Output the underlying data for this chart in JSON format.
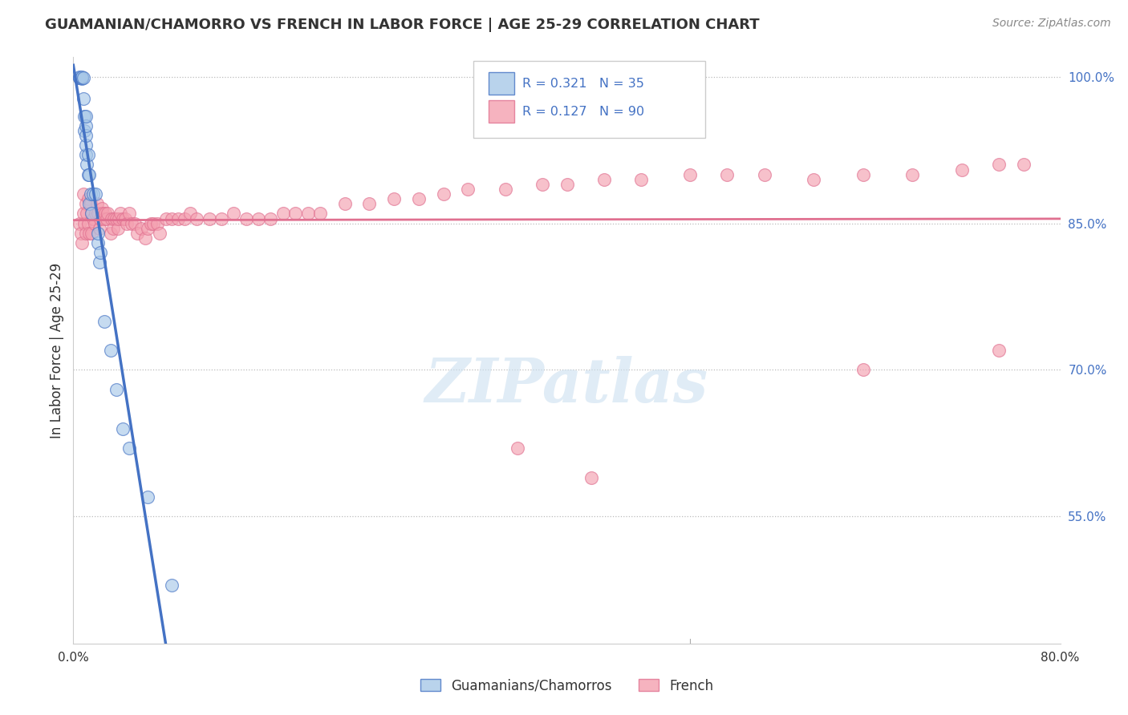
{
  "title": "GUAMANIAN/CHAMORRO VS FRENCH IN LABOR FORCE | AGE 25-29 CORRELATION CHART",
  "source": "Source: ZipAtlas.com",
  "ylabel": "In Labor Force | Age 25-29",
  "right_yticks": [
    1.0,
    0.85,
    0.7,
    0.55
  ],
  "right_yticklabels": [
    "100.0%",
    "85.0%",
    "70.0%",
    "55.0%"
  ],
  "xlim": [
    0.0,
    0.8
  ],
  "ylim": [
    0.42,
    1.02
  ],
  "R_blue": 0.321,
  "N_blue": 35,
  "R_pink": 0.127,
  "N_pink": 90,
  "legend_label_blue": "Guamanians/Chamorros",
  "legend_label_pink": "French",
  "watermark": "ZIPatlas",
  "blue_color": "#a8c8e8",
  "pink_color": "#f4a0b0",
  "trend_blue": "#4472c4",
  "trend_pink": "#e07090",
  "blue_scatter_x": [
    0.005,
    0.005,
    0.005,
    0.007,
    0.007,
    0.007,
    0.008,
    0.008,
    0.009,
    0.009,
    0.01,
    0.01,
    0.01,
    0.01,
    0.01,
    0.011,
    0.012,
    0.012,
    0.013,
    0.013,
    0.014,
    0.015,
    0.016,
    0.018,
    0.02,
    0.02,
    0.021,
    0.022,
    0.025,
    0.03,
    0.035,
    0.04,
    0.045,
    0.06,
    0.08
  ],
  "blue_scatter_y": [
    0.999,
    0.999,
    1.0,
    0.998,
    0.999,
    1.0,
    0.978,
    0.999,
    0.945,
    0.96,
    0.92,
    0.93,
    0.94,
    0.95,
    0.96,
    0.91,
    0.9,
    0.92,
    0.87,
    0.9,
    0.88,
    0.86,
    0.88,
    0.88,
    0.83,
    0.84,
    0.81,
    0.82,
    0.75,
    0.72,
    0.68,
    0.64,
    0.62,
    0.57,
    0.48
  ],
  "pink_scatter_x": [
    0.005,
    0.006,
    0.007,
    0.008,
    0.008,
    0.009,
    0.01,
    0.01,
    0.011,
    0.012,
    0.012,
    0.013,
    0.014,
    0.015,
    0.015,
    0.016,
    0.017,
    0.018,
    0.019,
    0.02,
    0.021,
    0.022,
    0.023,
    0.024,
    0.025,
    0.026,
    0.027,
    0.028,
    0.03,
    0.031,
    0.032,
    0.033,
    0.035,
    0.036,
    0.037,
    0.038,
    0.04,
    0.042,
    0.043,
    0.045,
    0.047,
    0.05,
    0.052,
    0.055,
    0.058,
    0.06,
    0.063,
    0.065,
    0.068,
    0.07,
    0.075,
    0.08,
    0.085,
    0.09,
    0.095,
    0.1,
    0.11,
    0.12,
    0.13,
    0.14,
    0.15,
    0.16,
    0.17,
    0.18,
    0.19,
    0.2,
    0.22,
    0.24,
    0.26,
    0.28,
    0.3,
    0.32,
    0.35,
    0.38,
    0.4,
    0.43,
    0.46,
    0.5,
    0.53,
    0.56,
    0.6,
    0.64,
    0.68,
    0.72,
    0.75,
    0.77,
    0.64,
    0.75,
    0.36,
    0.42
  ],
  "pink_scatter_y": [
    0.85,
    0.84,
    0.83,
    0.86,
    0.88,
    0.85,
    0.84,
    0.87,
    0.86,
    0.85,
    0.875,
    0.84,
    0.87,
    0.84,
    0.86,
    0.855,
    0.85,
    0.86,
    0.87,
    0.86,
    0.845,
    0.855,
    0.865,
    0.86,
    0.855,
    0.86,
    0.855,
    0.86,
    0.84,
    0.855,
    0.845,
    0.855,
    0.855,
    0.845,
    0.855,
    0.86,
    0.855,
    0.855,
    0.85,
    0.86,
    0.85,
    0.85,
    0.84,
    0.845,
    0.835,
    0.845,
    0.85,
    0.85,
    0.85,
    0.84,
    0.855,
    0.855,
    0.855,
    0.855,
    0.86,
    0.855,
    0.855,
    0.855,
    0.86,
    0.855,
    0.855,
    0.855,
    0.86,
    0.86,
    0.86,
    0.86,
    0.87,
    0.87,
    0.875,
    0.875,
    0.88,
    0.885,
    0.885,
    0.89,
    0.89,
    0.895,
    0.895,
    0.9,
    0.9,
    0.9,
    0.895,
    0.9,
    0.9,
    0.905,
    0.91,
    0.91,
    0.7,
    0.72,
    0.62,
    0.59
  ]
}
